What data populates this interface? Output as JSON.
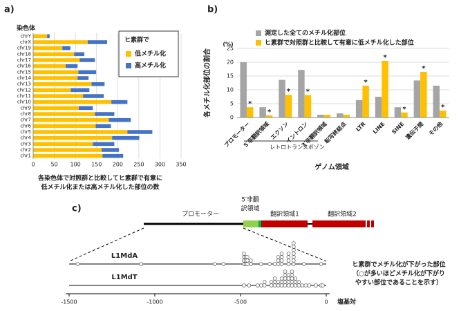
{
  "panel_labels": [
    "a)",
    "b)",
    "c)"
  ],
  "chart_data": [
    {
      "type": "hbar-stacked",
      "axis_title": "染色体",
      "categories": [
        "chrY",
        "chrX",
        "chr19",
        "chr18",
        "chr17",
        "chr16",
        "chr15",
        "chr14",
        "chr13",
        "chr12",
        "chr11",
        "chr10",
        "chr9",
        "chr8",
        "chr7",
        "chr6",
        "chr5",
        "chr4",
        "chr3",
        "chr2",
        "chr1"
      ],
      "legend_title": "ヒ素群で",
      "series": [
        {
          "name": "低メチル化",
          "color": "#FFC000",
          "values": [
            33,
            129,
            69,
            97,
            110,
            77,
            107,
            105,
            138,
            89,
            118,
            185,
            108,
            146,
            179,
            148,
            223,
            187,
            141,
            162,
            164
          ]
        },
        {
          "name": "高メチル化",
          "color": "#4472C4",
          "values": [
            6,
            46,
            19,
            24,
            36,
            28,
            42,
            26,
            31,
            44,
            49,
            38,
            33,
            46,
            52,
            36,
            59,
            64,
            51,
            41,
            49
          ]
        }
      ],
      "xlim": [
        0,
        350
      ],
      "xticks": [
        0,
        50,
        100,
        150,
        200,
        250,
        300,
        350
      ],
      "grid": true,
      "caption": [
        "各染色体で対照群と比較してヒ素群で有意に",
        "低メチル化または高メチル化した部位の数"
      ]
    },
    {
      "type": "bar",
      "y_label": "各メチル化部位の割合",
      "y_unit": "(%)",
      "x_label": "ゲノム領域",
      "categories": [
        "プロモーター",
        "5′非翻訳領域",
        "エクソン",
        "イントロン",
        "3′非翻訳領域",
        "転写終結点",
        "LTR",
        "LINE",
        "SINE",
        "遺伝子間",
        "その他"
      ],
      "group_label": "レトロトランスポゾン",
      "series": [
        {
          "name": "測定した全てのメチル化部位",
          "color": "#A5A5A5",
          "values": [
            20,
            3.7,
            13.6,
            17.2,
            1,
            1.5,
            6.3,
            7.5,
            3.7,
            13.4,
            11.5
          ]
        },
        {
          "name": "ヒ素群で対照群と比較して有意に低メチル化した部位",
          "color": "#FFC000",
          "values": [
            3.7,
            0.8,
            8.2,
            8.1,
            1,
            1,
            11.5,
            20.5,
            1.8,
            16.5,
            2.5
          ]
        }
      ],
      "significance_marker": "*",
      "significant": [
        true,
        true,
        true,
        true,
        false,
        false,
        true,
        true,
        true,
        true,
        true
      ],
      "ylim": [
        0,
        25
      ],
      "yticks": [
        0,
        5,
        10,
        15,
        20,
        25
      ],
      "grid": true
    },
    {
      "type": "dot-strip",
      "x_label": "塩基対",
      "gene_labels": [
        [
          "プロモーター"
        ],
        [
          "5′非翻",
          "訳領域"
        ],
        [
          "翻訳領域1"
        ],
        [
          "翻訳領域2"
        ]
      ],
      "series": [
        {
          "name": "L1MdA",
          "values": [
            -1450,
            -1080,
            -650,
            -600,
            -480,
            -480,
            -480,
            -480,
            -470,
            -470,
            -470,
            -460,
            -460,
            -460,
            -440,
            -440,
            -380,
            -330,
            -300,
            -280,
            -280,
            -280,
            -260,
            -260,
            -260,
            -260,
            -220,
            -220,
            -220,
            -220,
            -190,
            -190,
            -190,
            -190,
            -190,
            -190,
            -190,
            -130,
            -30
          ]
        },
        {
          "name": "L1MdT",
          "values": [
            -480,
            -450,
            -400,
            -380,
            -360,
            -360,
            -320,
            -320,
            -300,
            -300,
            -300,
            -280,
            -280,
            -260,
            -260,
            -260,
            -240,
            -240,
            -240,
            -240,
            -240,
            -220,
            -220,
            -220,
            -220,
            -200,
            -200,
            -200,
            -200,
            -200,
            -180,
            -180,
            -180,
            -160,
            -160,
            -140,
            -120,
            -100,
            -60,
            -30,
            -20
          ]
        }
      ],
      "xlim": [
        -1500,
        0
      ],
      "xticks": [
        -1500,
        -1000,
        -500,
        0
      ],
      "annotation": [
        "ヒ素群でメチル化が下がった部位",
        "（○が多いほどメチル化が下がり",
        "やすい部位であることを示す）"
      ]
    }
  ]
}
